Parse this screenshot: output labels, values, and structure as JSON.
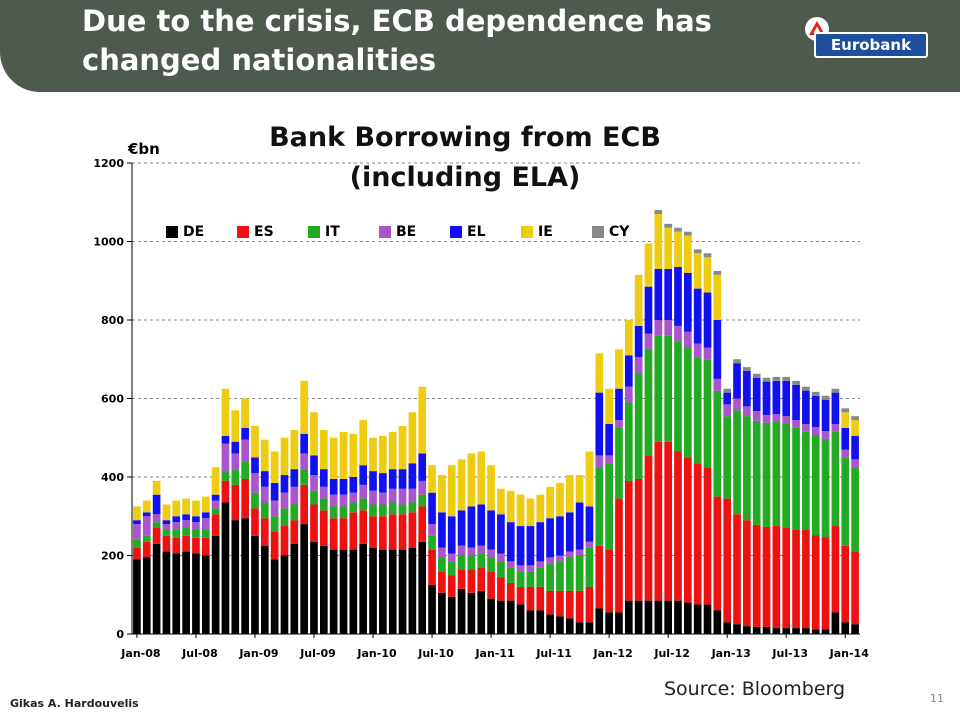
{
  "slide": {
    "title": "Due to the crisis, ECB dependence has changed nationalities",
    "logo_text": "Eurobank",
    "source": "Source: Bloomberg",
    "author": "Gikas A. Hardouvelis",
    "page_number": "11"
  },
  "colors": {
    "header_bg": "#4d5a4d",
    "logo_bg": "#1d4f9c",
    "logo_mark": "#e2231a"
  },
  "chart_data": {
    "type": "bar",
    "stacked": true,
    "title": "Bank Borrowing from ECB (including ELA)",
    "title_lines": [
      "Bank Borrowing from ECB",
      "(including ELA)"
    ],
    "ylabel": "€bn",
    "xlabel": "",
    "ylim": [
      0,
      1200
    ],
    "yticks": [
      "0",
      "200",
      "400",
      "600",
      "800",
      "1000",
      "1200"
    ],
    "ytick_values": [
      0,
      200,
      400,
      600,
      800,
      1000,
      1200
    ],
    "grid": true,
    "legend_position": "top-left",
    "x_tick_labels": [
      {
        "index": 0,
        "label": "Jan-08"
      },
      {
        "index": 6,
        "label": "Jul-08"
      },
      {
        "index": 12,
        "label": "Jan-09"
      },
      {
        "index": 18,
        "label": "Jul-09"
      },
      {
        "index": 24,
        "label": "Jan-10"
      },
      {
        "index": 30,
        "label": "Jul-10"
      },
      {
        "index": 36,
        "label": "Jan-11"
      },
      {
        "index": 42,
        "label": "Jul-11"
      },
      {
        "index": 48,
        "label": "Jan-12"
      },
      {
        "index": 54,
        "label": "Jul-12"
      },
      {
        "index": 60,
        "label": "Jan-13"
      },
      {
        "index": 66,
        "label": "Jul-13"
      },
      {
        "index": 72,
        "label": "Jan-14"
      }
    ],
    "series": [
      {
        "name": "DE",
        "color": "#000000",
        "values": [
          190,
          195,
          230,
          210,
          205,
          210,
          205,
          200,
          250,
          335,
          290,
          295,
          250,
          225,
          190,
          200,
          230,
          280,
          235,
          225,
          215,
          215,
          215,
          230,
          220,
          215,
          215,
          215,
          220,
          235,
          125,
          105,
          95,
          115,
          105,
          110,
          90,
          85,
          85,
          75,
          60,
          60,
          50,
          45,
          40,
          30,
          30,
          65,
          55,
          55,
          85,
          85,
          85,
          85,
          85,
          85,
          80,
          75,
          75,
          60,
          30,
          25,
          20,
          18,
          18,
          15,
          15,
          15,
          15,
          12,
          12,
          55,
          30,
          25
        ]
      },
      {
        "name": "ES",
        "color": "#ee1111",
        "values": [
          30,
          40,
          40,
          40,
          40,
          40,
          40,
          45,
          55,
          55,
          90,
          100,
          70,
          70,
          70,
          75,
          60,
          100,
          95,
          90,
          80,
          80,
          95,
          85,
          80,
          85,
          90,
          90,
          90,
          90,
          90,
          55,
          55,
          50,
          60,
          60,
          70,
          60,
          45,
          45,
          60,
          60,
          60,
          65,
          70,
          80,
          90,
          160,
          160,
          290,
          305,
          310,
          370,
          405,
          405,
          380,
          370,
          360,
          350,
          290,
          315,
          280,
          270,
          260,
          255,
          260,
          255,
          250,
          250,
          240,
          235,
          220,
          195,
          185
        ]
      },
      {
        "name": "IT",
        "color": "#22aa22",
        "values": [
          20,
          15,
          15,
          15,
          20,
          20,
          20,
          20,
          15,
          25,
          40,
          45,
          40,
          40,
          40,
          45,
          40,
          40,
          35,
          30,
          30,
          30,
          25,
          30,
          30,
          30,
          30,
          25,
          25,
          30,
          35,
          35,
          35,
          35,
          35,
          35,
          35,
          40,
          40,
          40,
          40,
          50,
          70,
          75,
          85,
          90,
          100,
          200,
          220,
          180,
          200,
          270,
          270,
          270,
          270,
          280,
          280,
          270,
          275,
          270,
          210,
          265,
          265,
          265,
          265,
          265,
          265,
          260,
          250,
          255,
          250,
          240,
          225,
          215
        ]
      },
      {
        "name": "BE",
        "color": "#aa55cc",
        "values": [
          40,
          50,
          20,
          15,
          20,
          20,
          20,
          30,
          20,
          70,
          40,
          55,
          50,
          40,
          40,
          40,
          45,
          40,
          40,
          30,
          30,
          30,
          25,
          35,
          35,
          30,
          35,
          40,
          35,
          35,
          30,
          25,
          20,
          25,
          20,
          20,
          20,
          20,
          15,
          15,
          15,
          15,
          15,
          15,
          15,
          15,
          15,
          30,
          20,
          20,
          40,
          40,
          40,
          40,
          40,
          40,
          40,
          35,
          30,
          30,
          30,
          30,
          25,
          25,
          20,
          20,
          20,
          20,
          20,
          20,
          20,
          20,
          20,
          20
        ]
      },
      {
        "name": "EL",
        "color": "#1111ee",
        "values": [
          10,
          10,
          50,
          10,
          15,
          15,
          15,
          15,
          15,
          20,
          30,
          30,
          40,
          40,
          45,
          45,
          45,
          50,
          50,
          45,
          40,
          40,
          40,
          50,
          50,
          50,
          50,
          50,
          65,
          70,
          80,
          90,
          95,
          90,
          105,
          105,
          100,
          100,
          100,
          100,
          100,
          100,
          100,
          100,
          100,
          120,
          90,
          160,
          80,
          80,
          80,
          80,
          120,
          130,
          130,
          150,
          150,
          140,
          140,
          150,
          30,
          90,
          90,
          85,
          85,
          85,
          90,
          90,
          85,
          80,
          80,
          80,
          55,
          60
        ]
      },
      {
        "name": "IE",
        "color": "#eecc11",
        "values": [
          35,
          30,
          35,
          40,
          40,
          40,
          40,
          40,
          70,
          120,
          80,
          75,
          80,
          80,
          80,
          95,
          100,
          135,
          110,
          100,
          105,
          120,
          110,
          115,
          85,
          95,
          95,
          110,
          130,
          170,
          70,
          95,
          130,
          130,
          135,
          135,
          115,
          65,
          80,
          80,
          70,
          70,
          80,
          85,
          95,
          70,
          140,
          100,
          90,
          100,
          90,
          130,
          110,
          140,
          105,
          90,
          95,
          90,
          90,
          115,
          0,
          0,
          0,
          0,
          0,
          0,
          0,
          0,
          0,
          0,
          0,
          0,
          40,
          40
        ]
      },
      {
        "name": "CY",
        "color": "#888888",
        "values": [
          0,
          0,
          0,
          0,
          0,
          0,
          0,
          0,
          0,
          0,
          0,
          0,
          0,
          0,
          0,
          0,
          0,
          0,
          0,
          0,
          0,
          0,
          0,
          0,
          0,
          0,
          0,
          0,
          0,
          0,
          0,
          0,
          0,
          0,
          0,
          0,
          0,
          0,
          0,
          0,
          0,
          0,
          0,
          0,
          0,
          0,
          0,
          0,
          0,
          0,
          0,
          0,
          0,
          10,
          10,
          10,
          10,
          10,
          10,
          10,
          10,
          10,
          10,
          10,
          10,
          10,
          10,
          10,
          10,
          10,
          10,
          10,
          10,
          10
        ]
      }
    ]
  }
}
